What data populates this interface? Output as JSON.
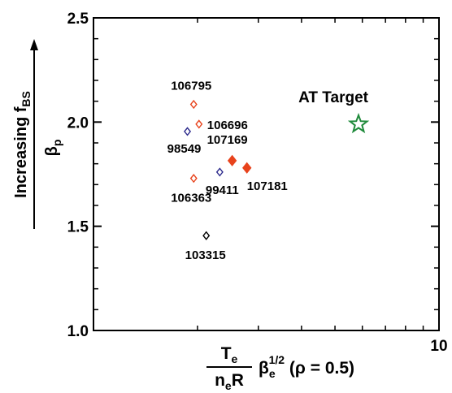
{
  "chart_data": {
    "type": "scatter",
    "x_scale": "log",
    "xlim": [
      1,
      10
    ],
    "ylim": [
      1.0,
      2.5
    ],
    "y_ticks": [
      1.0,
      1.5,
      2.0,
      2.5
    ],
    "y_tick_labels": [
      "1.0",
      "1.5",
      "2.0",
      "2.5"
    ],
    "x_tick_labels": [
      {
        "value": 10,
        "label": "10"
      }
    ],
    "grid": false,
    "xlabel": {
      "numerator": "T",
      "numerator_sub": "e",
      "denominator": "n",
      "denominator_sub": "e",
      "denominator_tail": "R",
      "beta": "β",
      "beta_sub": "e",
      "beta_sup": "1/2",
      "tail": "(ρ = 0.5)"
    },
    "ylabel": {
      "top": "Increasing f",
      "top_sub": "BS",
      "bottom": "β",
      "bottom_sub": "p"
    },
    "colors": {
      "red": "#e8431c",
      "blue": "#2c2a8c",
      "black": "#000000",
      "green": "#1f8a3b"
    },
    "points": [
      {
        "label": "106795",
        "x": 1.95,
        "y": 2.085,
        "color": "red",
        "filled": false
      },
      {
        "label": "106696",
        "x": 2.02,
        "y": 1.99,
        "color": "red",
        "filled": false
      },
      {
        "label": "98549",
        "x": 1.87,
        "y": 1.955,
        "color": "blue",
        "filled": false
      },
      {
        "label": "107169",
        "x": 2.52,
        "y": 1.815,
        "color": "red",
        "filled": true
      },
      {
        "label": "107181",
        "x": 2.78,
        "y": 1.78,
        "color": "red",
        "filled": true
      },
      {
        "label": "99411",
        "x": 2.32,
        "y": 1.76,
        "color": "blue",
        "filled": false
      },
      {
        "label": "106363",
        "x": 1.95,
        "y": 1.73,
        "color": "red",
        "filled": false
      },
      {
        "label": "103315",
        "x": 2.12,
        "y": 1.455,
        "color": "black",
        "filled": false
      }
    ],
    "target": {
      "label": "AT Target",
      "x": 5.85,
      "y": 1.99,
      "color": "green"
    }
  }
}
